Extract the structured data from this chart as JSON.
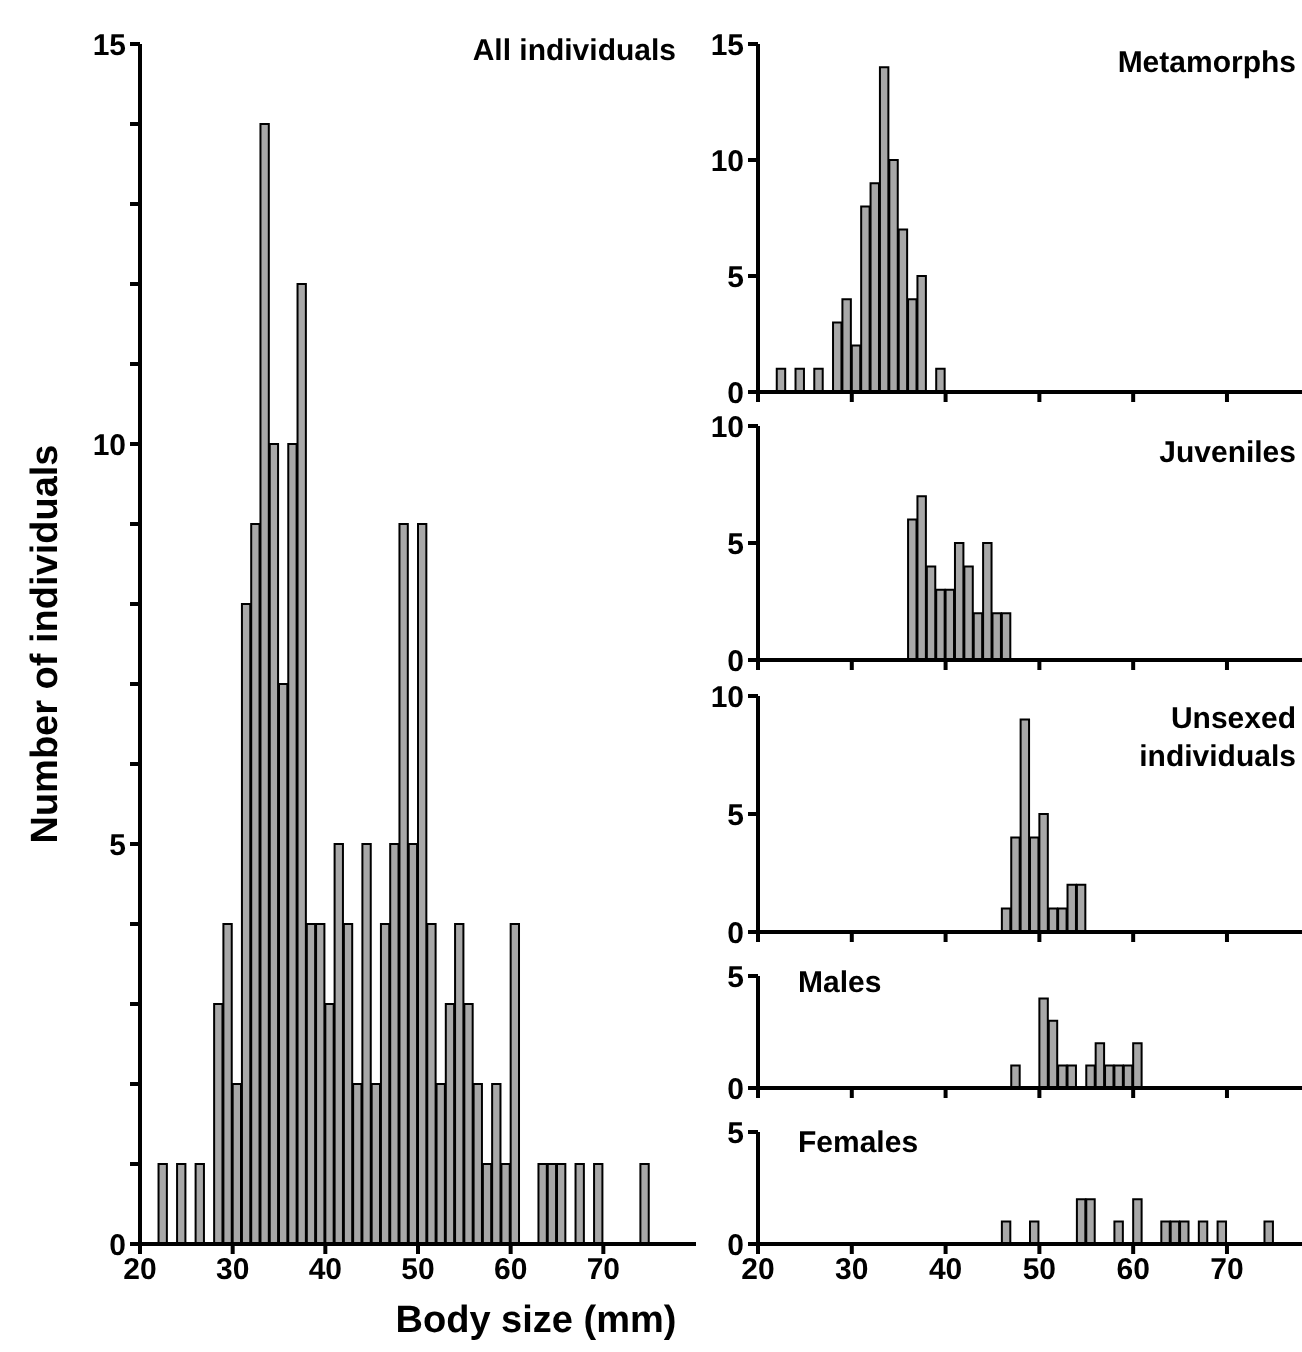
{
  "chart_data": [
    {
      "type": "histogram",
      "title": "All individuals",
      "xlabel": "Body size (mm)",
      "ylabel": "Number of individuals",
      "color": "#a8a8a8",
      "bins": [
        22,
        23,
        24,
        25,
        26,
        27,
        28,
        29,
        30,
        31,
        32,
        33,
        34,
        35,
        36,
        37,
        38,
        39,
        40,
        41,
        42,
        43,
        44,
        45,
        46,
        47,
        48,
        49,
        50,
        51,
        52,
        53,
        54,
        55,
        56,
        57,
        58,
        59,
        60,
        61,
        62,
        63,
        64,
        65,
        66,
        67,
        68,
        69,
        70,
        71,
        72,
        73,
        74,
        75
      ],
      "values": [
        1,
        0,
        1,
        0,
        1,
        0,
        3,
        4,
        2,
        8,
        9,
        14,
        10,
        7,
        10,
        12,
        4,
        4,
        3,
        5,
        4,
        2,
        5,
        2,
        4,
        5,
        9,
        5,
        9,
        4,
        2,
        3,
        4,
        3,
        2,
        1,
        2,
        1,
        4,
        0,
        0,
        1,
        1,
        1,
        0,
        1,
        0,
        1,
        0,
        0,
        0,
        0,
        1
      ],
      "xlim": [
        20,
        80
      ],
      "xticks": [
        20,
        30,
        40,
        50,
        60,
        70
      ],
      "ylim": [
        0,
        15
      ],
      "yticks": [
        0,
        {
          "value": 1,
          "label": null
        },
        {
          "value": 2,
          "label": null
        },
        {
          "value": 3,
          "label": null
        },
        {
          "value": 4,
          "label": null
        },
        5,
        {
          "value": 6,
          "label": null
        },
        {
          "value": 7,
          "label": null
        },
        {
          "value": 8,
          "label": null
        },
        {
          "value": 9,
          "label": null
        },
        10,
        {
          "value": 11,
          "label": null
        },
        {
          "value": 12,
          "label": null
        },
        {
          "value": 13,
          "label": null
        },
        {
          "value": 14,
          "label": null
        },
        15
      ]
    },
    {
      "type": "histogram",
      "title": "Metamorphs",
      "color": "#a8a8a8",
      "bins": [
        22,
        23,
        24,
        25,
        26,
        27,
        28,
        29,
        30,
        31,
        32,
        33,
        34,
        35,
        36,
        37,
        38,
        39,
        40
      ],
      "values": [
        1,
        0,
        1,
        0,
        1,
        0,
        3,
        4,
        2,
        8,
        9,
        14,
        10,
        7,
        4,
        5,
        0,
        1
      ],
      "xlim": [
        20,
        78
      ],
      "xticks": [
        20,
        30,
        40,
        50,
        60,
        70
      ],
      "ylim": [
        0,
        15
      ],
      "yticks": [
        0,
        5,
        10,
        15
      ],
      "tick_labels": "y"
    },
    {
      "type": "histogram",
      "title": "Juveniles",
      "color": "#a8a8a8",
      "bins": [
        36,
        37,
        38,
        39,
        40,
        41,
        42,
        43,
        44,
        45,
        46,
        47
      ],
      "values": [
        6,
        7,
        4,
        3,
        3,
        5,
        4,
        2,
        5,
        2,
        2
      ],
      "xlim": [
        20,
        78
      ],
      "xticks": [
        20,
        30,
        40,
        50,
        60,
        70
      ],
      "ylim": [
        0,
        10
      ],
      "yticks": [
        0,
        5,
        10
      ],
      "tick_labels": "y"
    },
    {
      "type": "histogram",
      "title": "Unsexed individuals",
      "color": "#a8a8a8",
      "bins": [
        46,
        47,
        48,
        49,
        50,
        51,
        52,
        53,
        54,
        55
      ],
      "values": [
        1,
        4,
        9,
        4,
        5,
        1,
        1,
        2,
        2
      ],
      "xlim": [
        20,
        78
      ],
      "xticks": [
        20,
        30,
        40,
        50,
        60,
        70
      ],
      "ylim": [
        0,
        10
      ],
      "yticks": [
        0,
        5,
        10
      ],
      "tick_labels": "y"
    },
    {
      "type": "histogram",
      "title": "Males",
      "color": "#a8a8a8",
      "bins": [
        47,
        48,
        49,
        50,
        51,
        52,
        53,
        54,
        55,
        56,
        57,
        58,
        59,
        60,
        61
      ],
      "values": [
        1,
        0,
        0,
        4,
        3,
        1,
        1,
        0,
        1,
        2,
        1,
        1,
        1,
        2
      ],
      "xlim": [
        20,
        78
      ],
      "xticks": [
        20,
        30,
        40,
        50,
        60,
        70
      ],
      "ylim": [
        0,
        5
      ],
      "yticks": [
        0,
        5
      ],
      "tick_labels": "y"
    },
    {
      "type": "histogram",
      "title": "Females",
      "color": "#a8a8a8",
      "bins": [
        46,
        47,
        48,
        49,
        50,
        51,
        52,
        53,
        54,
        55,
        56,
        57,
        58,
        59,
        60,
        61,
        62,
        63,
        64,
        65,
        66,
        67,
        68,
        69,
        70,
        71,
        72,
        73,
        74,
        75
      ],
      "values": [
        1,
        0,
        0,
        1,
        0,
        0,
        0,
        0,
        2,
        2,
        0,
        0,
        1,
        0,
        2,
        0,
        0,
        1,
        1,
        1,
        0,
        1,
        0,
        1,
        0,
        0,
        0,
        0,
        1
      ],
      "xlim": [
        20,
        78
      ],
      "xticks": [
        20,
        30,
        40,
        50,
        60,
        70
      ],
      "ylim": [
        0,
        5
      ],
      "yticks": [
        0,
        5
      ]
    }
  ]
}
